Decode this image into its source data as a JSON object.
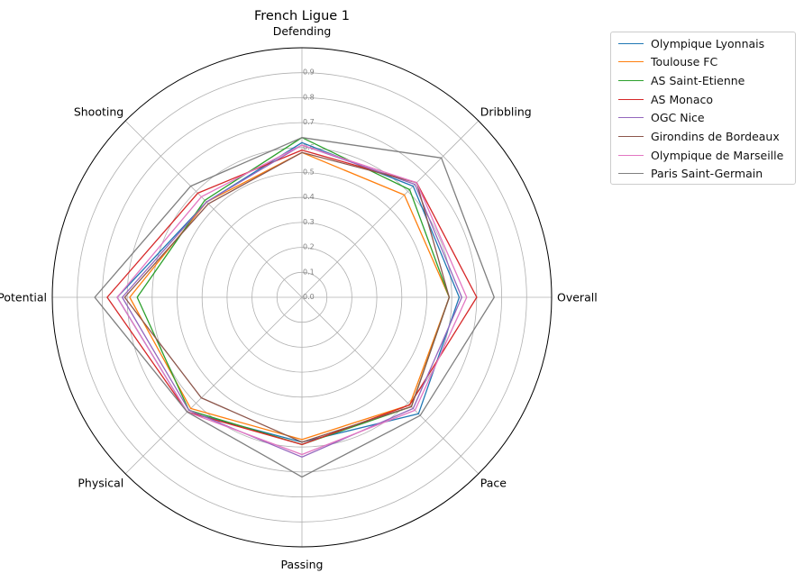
{
  "chart_data": {
    "type": "radar",
    "title": "French Ligue 1",
    "axes": [
      "Overall",
      "Dribbling",
      "Defending",
      "Shooting",
      "Potential",
      "Physical",
      "Passing",
      "Pace"
    ],
    "rlim": [
      0,
      1.0
    ],
    "rticks": [
      "0.0",
      "0.1",
      "0.2",
      "0.3",
      "0.4",
      "0.5",
      "0.6",
      "0.7",
      "0.8",
      "0.9"
    ],
    "grid": true,
    "legend_position": "upper-right-outside",
    "series": [
      {
        "name": "Olympique Lyonnais",
        "color": "#1f77b4",
        "values": [
          0.63,
          0.63,
          0.62,
          0.54,
          0.74,
          0.65,
          0.58,
          0.66
        ]
      },
      {
        "name": "Toulouse FC",
        "color": "#ff7f0e",
        "values": [
          0.59,
          0.58,
          0.58,
          0.54,
          0.69,
          0.63,
          0.57,
          0.61
        ]
      },
      {
        "name": "AS Saint-Etienne",
        "color": "#2ca02c",
        "values": [
          0.59,
          0.61,
          0.64,
          0.55,
          0.66,
          0.64,
          0.59,
          0.62
        ]
      },
      {
        "name": "AS Monaco",
        "color": "#d62728",
        "values": [
          0.7,
          0.65,
          0.59,
          0.59,
          0.78,
          0.65,
          0.59,
          0.61
        ]
      },
      {
        "name": "OGC Nice",
        "color": "#9467bd",
        "values": [
          0.64,
          0.64,
          0.61,
          0.54,
          0.72,
          0.64,
          0.64,
          0.63
        ]
      },
      {
        "name": "Girondins de Bordeaux",
        "color": "#8c564b",
        "values": [
          0.59,
          0.65,
          0.58,
          0.53,
          0.71,
          0.57,
          0.58,
          0.62
        ]
      },
      {
        "name": "Olympique de Marseille",
        "color": "#e377c2",
        "values": [
          0.66,
          0.65,
          0.61,
          0.57,
          0.74,
          0.65,
          0.63,
          0.64
        ]
      },
      {
        "name": "Paris Saint-Germain",
        "color": "#7f7f7f",
        "values": [
          0.77,
          0.79,
          0.64,
          0.63,
          0.83,
          0.65,
          0.72,
          0.67
        ]
      }
    ]
  }
}
